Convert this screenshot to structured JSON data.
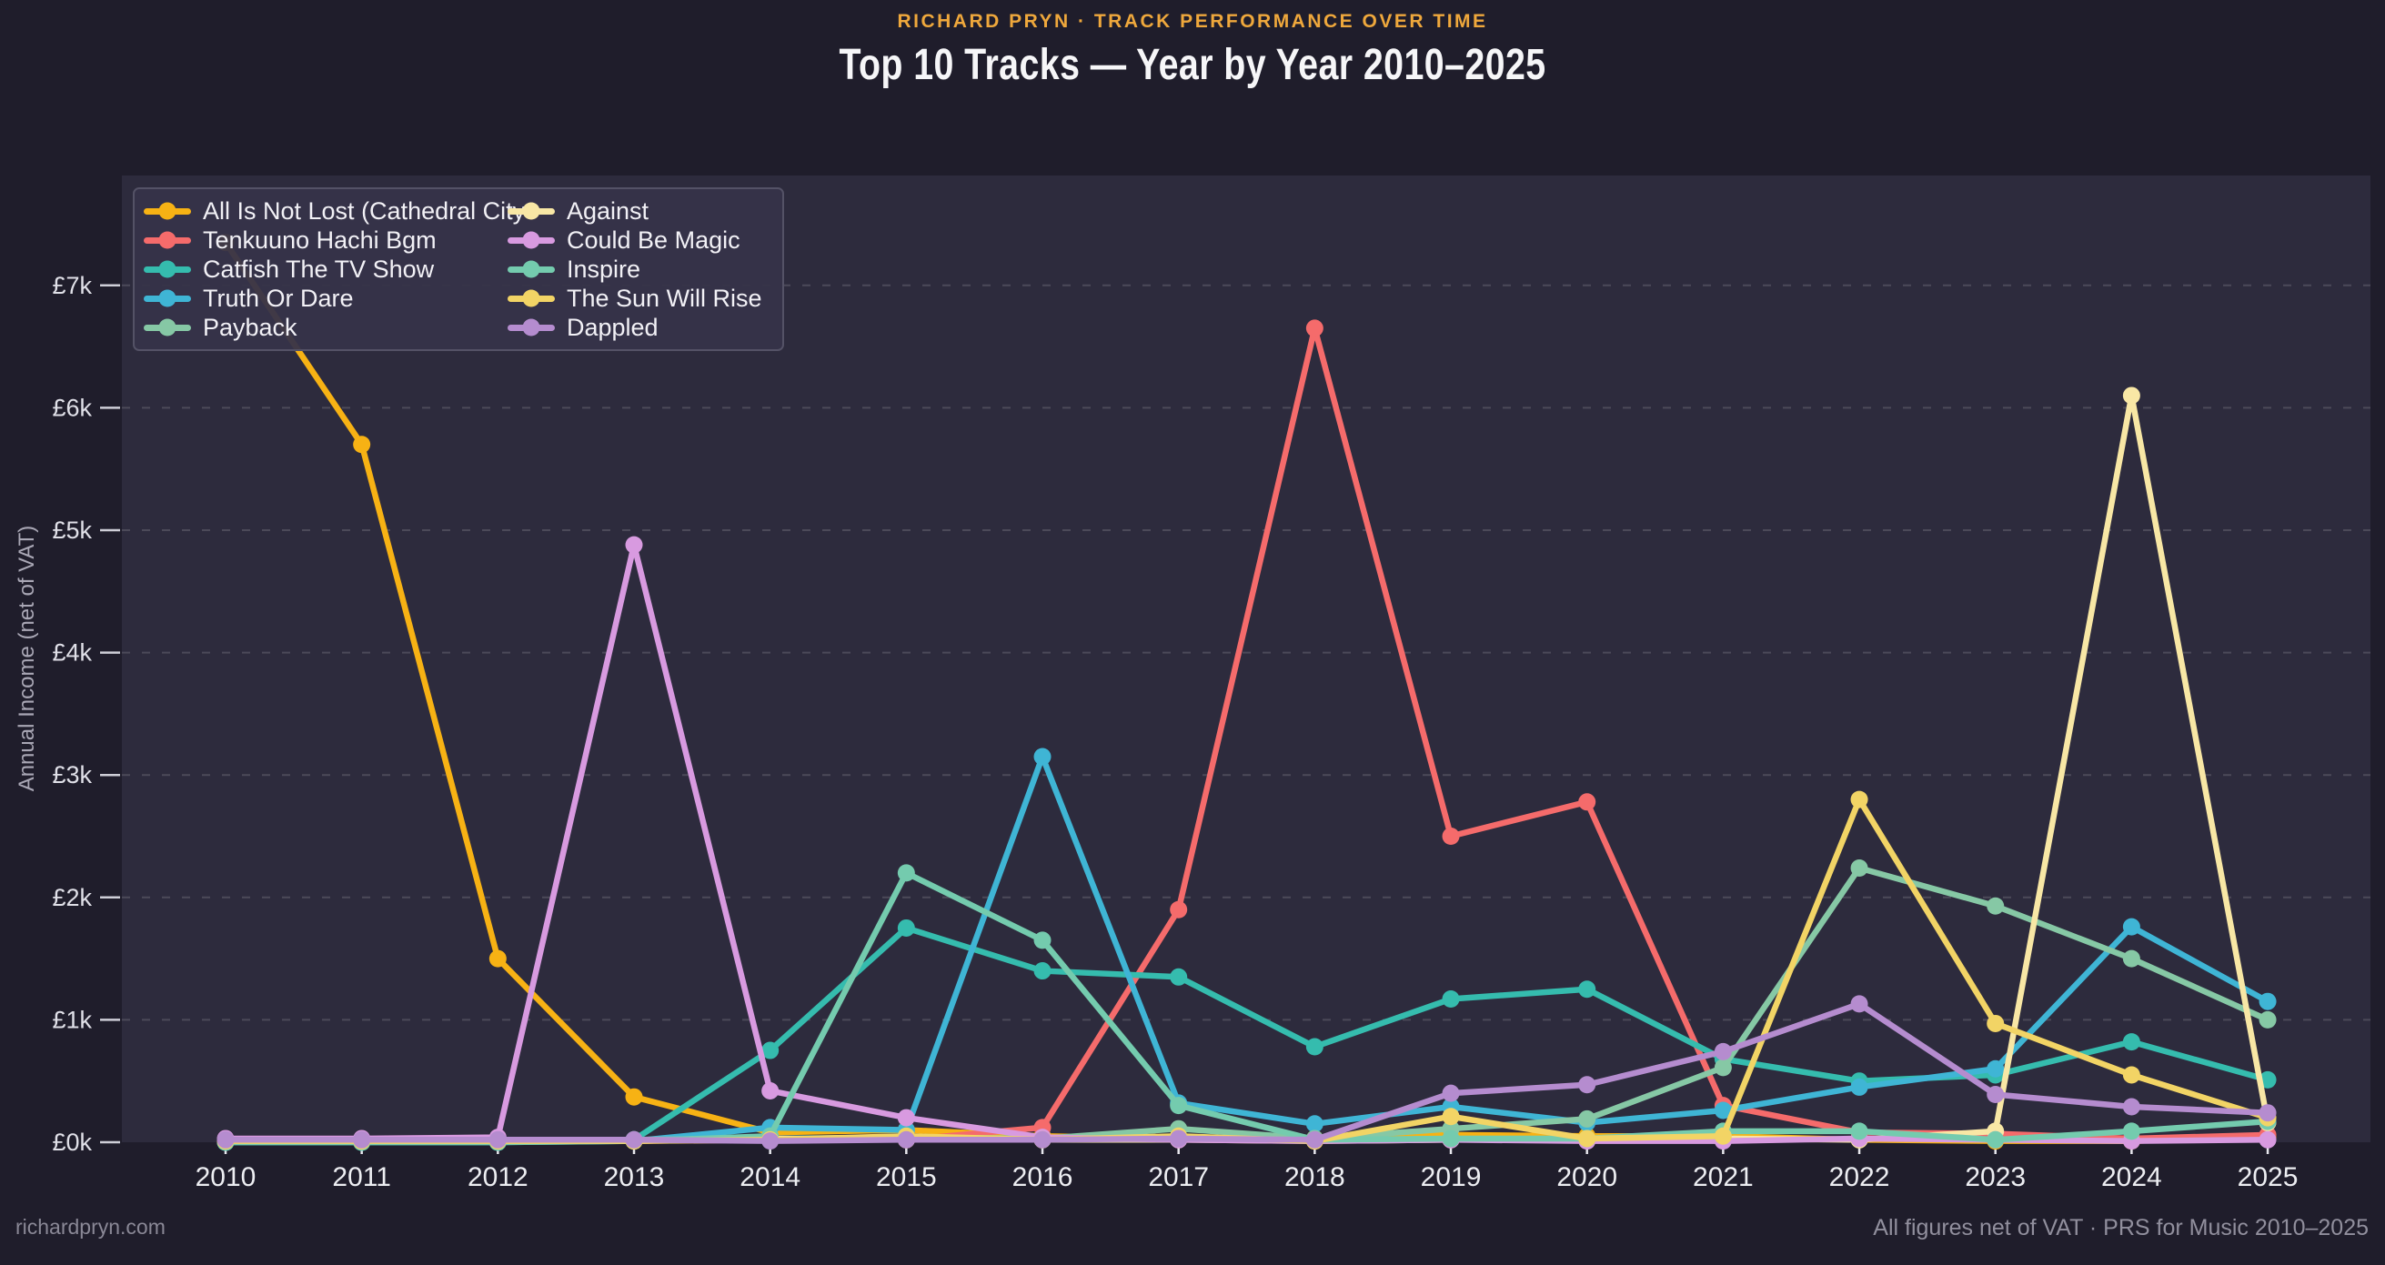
{
  "header": {
    "eyebrow": "RICHARD PRYN · TRACK PERFORMANCE OVER TIME",
    "title": "Top 10 Tracks — Year by Year  2010–2025"
  },
  "footer": {
    "left": "richardpryn.com",
    "right": "All figures net of VAT · PRS for Music 2010–2025"
  },
  "colors": {
    "page_background": "#1f1d2b",
    "plot_background": "#2d2b3d",
    "legend_background": "#363349",
    "legend_border": "#545266",
    "gridline": "rgba(255,255,255,0.15)",
    "tick": "#cfcfd8",
    "y_tick_label": "#e0e0e8",
    "x_tick_label": "#edeef2",
    "eyebrow_text": "#efa83c",
    "title_text": "#f6f6f8",
    "footer_text": "#8a8896"
  },
  "chart_data": {
    "type": "line",
    "title": "Top 10 Tracks — Year by Year  2010–2025",
    "xlabel": "",
    "ylabel": "Annual Income (net of VAT)",
    "units": "GBP thousands",
    "x": [
      2010,
      2011,
      2012,
      2013,
      2014,
      2015,
      2016,
      2017,
      2018,
      2019,
      2020,
      2021,
      2022,
      2023,
      2024,
      2025
    ],
    "y_tick_labels": [
      "£0k",
      "£1k",
      "£2k",
      "£3k",
      "£4k",
      "£5k",
      "£6k",
      "£7k"
    ],
    "ylim": [
      0,
      7.9
    ],
    "grid": "horizontal dashed",
    "legend_position": "upper-left inside, 2 columns",
    "marker": "circle",
    "series": [
      {
        "name": "All Is Not Lost (Cathedral City",
        "color": "#f7b214",
        "values": [
          7.35,
          5.7,
          1.5,
          0.37,
          0.08,
          0.1,
          0.05,
          0.03,
          0.03,
          0.06,
          0.05,
          0.05,
          0.02,
          0.01,
          0.01,
          0.04
        ]
      },
      {
        "name": "Tenkuuno Hachi Bgm",
        "color": "#f56b6b",
        "values": [
          0.01,
          0.01,
          0.01,
          0.01,
          0.02,
          0.02,
          0.12,
          1.9,
          6.65,
          2.5,
          2.78,
          0.3,
          0.08,
          0.07,
          0.03,
          0.06
        ]
      },
      {
        "name": "Catfish The TV Show",
        "color": "#35bcae",
        "values": [
          0,
          0,
          0,
          0.02,
          0.75,
          1.75,
          1.4,
          1.35,
          0.78,
          1.17,
          1.25,
          0.68,
          0.5,
          0.55,
          0.82,
          0.51
        ]
      },
      {
        "name": "Truth Or Dare",
        "color": "#3fb5d5",
        "values": [
          0,
          0,
          0,
          0.01,
          0.12,
          0.1,
          3.15,
          0.32,
          0.15,
          0.29,
          0.16,
          0.26,
          0.45,
          0.6,
          1.76,
          1.15
        ]
      },
      {
        "name": "Payback",
        "color": "#86c8a5",
        "values": [
          0.01,
          0.01,
          0.01,
          0.02,
          0.03,
          0.04,
          0.03,
          0.11,
          0.03,
          0.11,
          0.19,
          0.61,
          2.24,
          1.93,
          1.5,
          1.0
        ]
      },
      {
        "name": "Against",
        "color": "#f8e7a5",
        "values": [
          0.02,
          0.02,
          0.02,
          0.01,
          0.03,
          0.02,
          0.02,
          0.02,
          0.01,
          0.02,
          0.02,
          0.03,
          0.02,
          0.09,
          6.1,
          0.16
        ]
      },
      {
        "name": "Could Be Magic",
        "color": "#d89ae0",
        "values": [
          0.03,
          0.03,
          0.04,
          4.88,
          0.42,
          0.2,
          0.04,
          0.02,
          0.01,
          0.02,
          0.01,
          0.01,
          0.03,
          0.02,
          0.01,
          0.02
        ]
      },
      {
        "name": "Inspire",
        "color": "#74cbae",
        "values": [
          0,
          0,
          0,
          0.01,
          0.05,
          2.2,
          1.65,
          0.3,
          0.02,
          0.03,
          0.03,
          0.09,
          0.09,
          0.02,
          0.09,
          0.17
        ]
      },
      {
        "name": "The Sun Will Rise",
        "color": "#f2d465",
        "values": [
          0.01,
          0.01,
          0.01,
          0.01,
          0.02,
          0.05,
          0.02,
          0.05,
          0.01,
          0.21,
          0.03,
          0.05,
          2.8,
          0.97,
          0.55,
          0.2
        ]
      },
      {
        "name": "Dappled",
        "color": "#b58ccf",
        "values": [
          0.02,
          0.02,
          0.02,
          0.02,
          0.01,
          0.02,
          0.02,
          0.03,
          0.02,
          0.4,
          0.47,
          0.74,
          1.13,
          0.39,
          0.29,
          0.24
        ]
      }
    ]
  }
}
